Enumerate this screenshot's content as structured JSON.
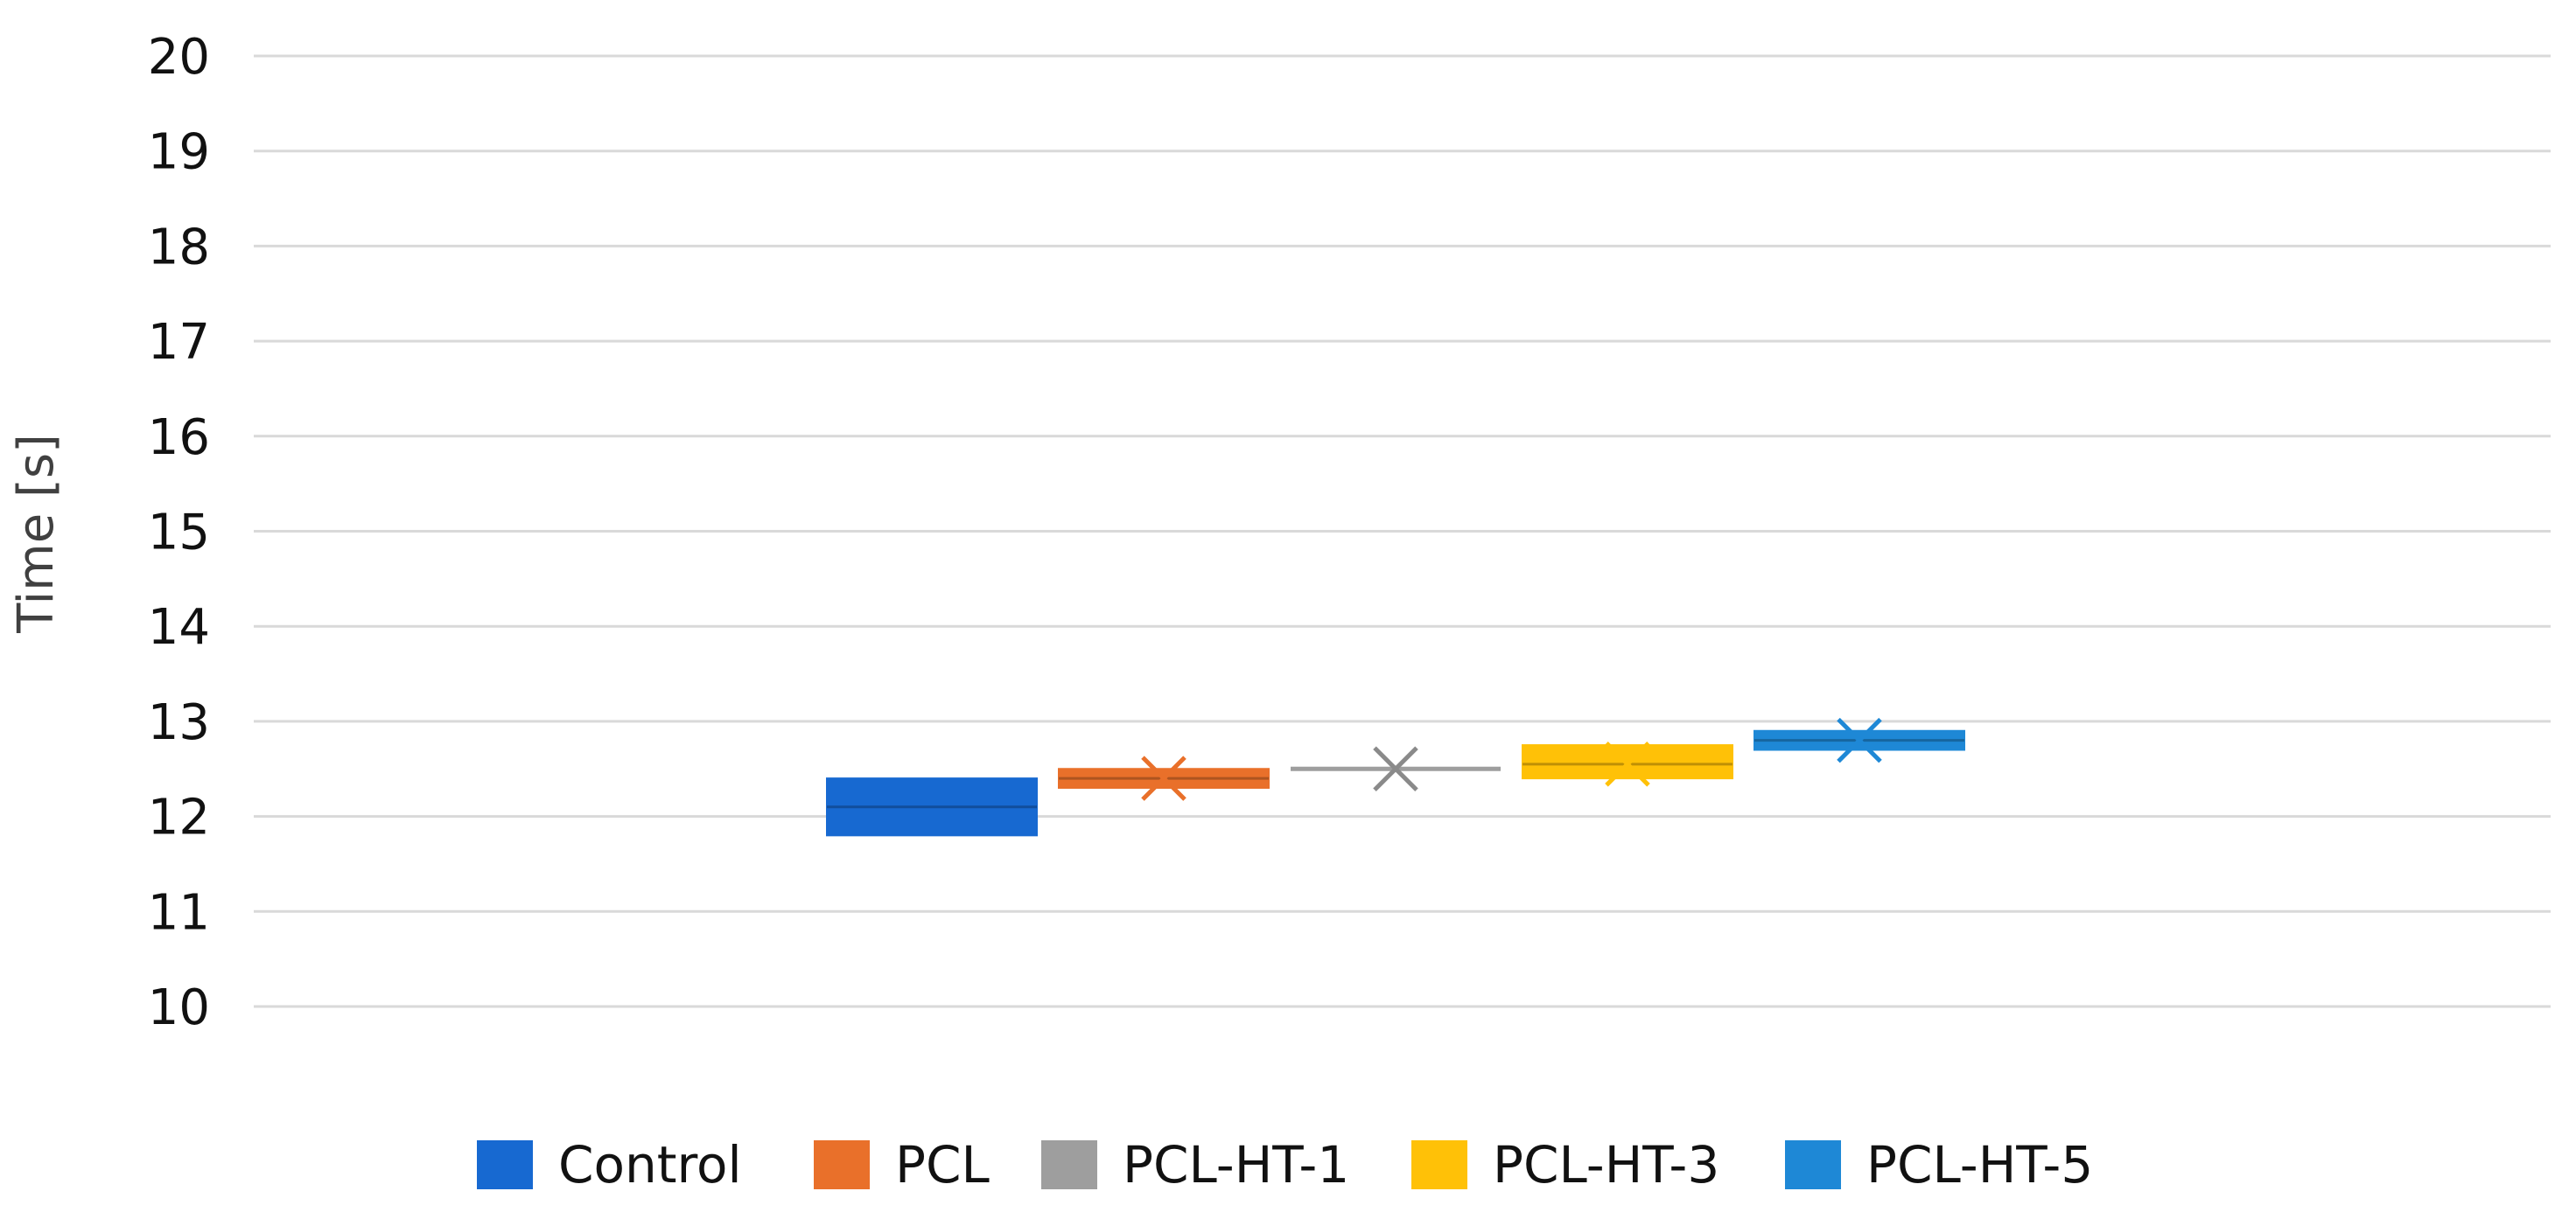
{
  "chart_data": {
    "type": "box",
    "title": "",
    "xlabel": "",
    "ylabel": "Time [s]",
    "ylim": [
      10,
      20
    ],
    "yticks": [
      10,
      11,
      12,
      13,
      14,
      15,
      16,
      17,
      18,
      19,
      20
    ],
    "grid": true,
    "legend_position": "bottom",
    "series": [
      {
        "name": "Control",
        "color": "#1769D1",
        "q1": 11.8,
        "q3": 12.4,
        "median": 12.1,
        "mean": null,
        "mean_marker": false
      },
      {
        "name": "PCL",
        "color": "#E9702A",
        "q1": 12.3,
        "q3": 12.5,
        "median": 12.4,
        "mean": 12.4,
        "mean_marker": true
      },
      {
        "name": "PCL-HT-1",
        "color": "#9E9E9E",
        "q1": 12.5,
        "q3": 12.5,
        "median": 12.5,
        "mean": 12.5,
        "mean_marker": true
      },
      {
        "name": "PCL-HT-3",
        "color": "#FFC107",
        "q1": 12.4,
        "q3": 12.75,
        "median": 12.55,
        "mean": 12.55,
        "mean_marker": true
      },
      {
        "name": "PCL-HT-5",
        "color": "#1E88D6",
        "q1": 12.7,
        "q3": 12.9,
        "median": 12.8,
        "mean": 12.8,
        "mean_marker": true
      }
    ]
  }
}
